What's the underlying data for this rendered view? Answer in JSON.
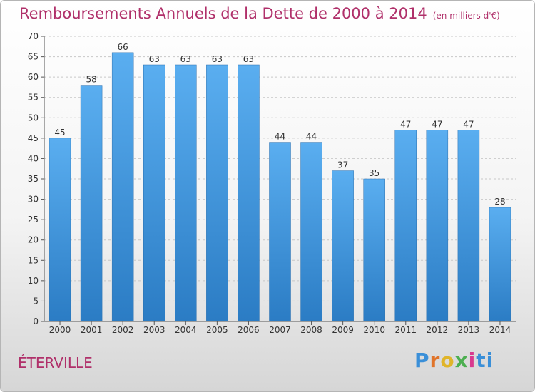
{
  "title": "Remboursements Annuels de la Dette de 2000 à 2014",
  "unit": "(en milliers d'€)",
  "commune": "ÉTERVILLE",
  "logo": "Proxiti",
  "chart_data": {
    "type": "bar",
    "title": "Remboursements Annuels de la Dette de 2000 à 2014",
    "subtitle": "(en milliers d'€)",
    "xlabel": "",
    "ylabel": "",
    "categories": [
      "2000",
      "2001",
      "2002",
      "2003",
      "2004",
      "2005",
      "2006",
      "2007",
      "2008",
      "2009",
      "2010",
      "2011",
      "2012",
      "2013",
      "2014"
    ],
    "values": [
      45,
      58,
      66,
      63,
      63,
      63,
      63,
      44,
      44,
      37,
      35,
      47,
      47,
      47,
      28
    ],
    "ylim": [
      0,
      70
    ],
    "yticks": [
      0,
      5,
      10,
      15,
      20,
      25,
      30,
      35,
      40,
      45,
      50,
      55,
      60,
      65,
      70
    ],
    "grid": true,
    "bar_color": "#4a9be0"
  }
}
